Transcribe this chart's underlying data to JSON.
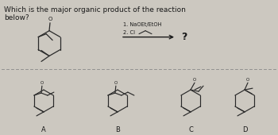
{
  "title_line1": "Which is the major organic product of the reaction",
  "title_line2": "below?",
  "background_color": "#ccc8c0",
  "text_color": "#1a1a1a",
  "reagent_line1": "1. NaOEt/EtOH",
  "reagent_line2": "2. Cl",
  "question_mark": "?",
  "labels": [
    "A",
    "B",
    "C",
    "D"
  ],
  "fig_width": 3.5,
  "fig_height": 1.7,
  "dpi": 100
}
